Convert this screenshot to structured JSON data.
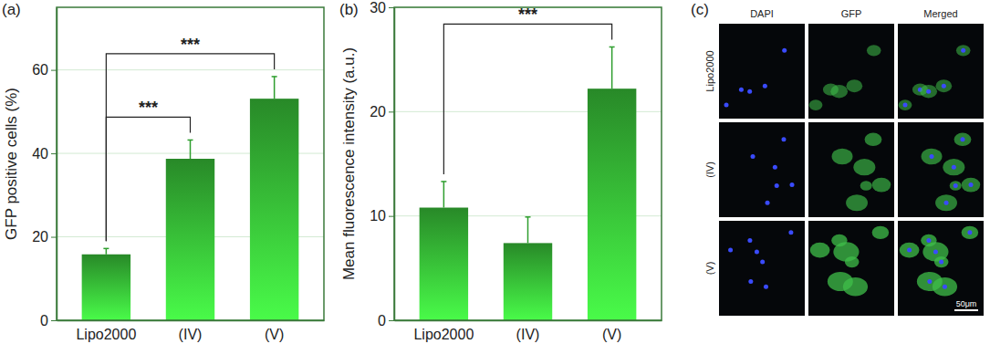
{
  "chart_data": [
    {
      "type": "bar",
      "title": "(a)",
      "y_label": "GFP positive cells (%)",
      "categories": [
        "Lipo2000",
        "(IV)",
        "(V)"
      ],
      "values": [
        15.8,
        38.7,
        53.1
      ],
      "errors": [
        1.4,
        4.5,
        5.3
      ],
      "color": "#2e9e2e",
      "ylim": [
        0,
        75
      ],
      "yticks": [
        0,
        20,
        40,
        60
      ],
      "grid": true,
      "annotations": [
        {
          "text": "***",
          "between": [
            "Lipo2000",
            "(IV)"
          ]
        },
        {
          "text": "***",
          "between": [
            "Lipo2000",
            "(V)"
          ]
        }
      ]
    },
    {
      "type": "bar",
      "title": "(b)",
      "y_label": "Mean fluorescence intensity (a.u.)",
      "categories": [
        "Lipo2000",
        "(IV)",
        "(V)"
      ],
      "values": [
        10.8,
        7.4,
        22.2
      ],
      "errors": [
        2.5,
        2.5,
        4.0
      ],
      "color": "#2e9e2e",
      "ylim": [
        0,
        30
      ],
      "yticks": [
        0,
        10,
        20,
        30
      ],
      "grid": true,
      "annotations": [
        {
          "text": "***",
          "between": [
            "Lipo2000",
            "(V)"
          ]
        }
      ]
    }
  ],
  "image_panel": {
    "title": "(c)",
    "columns": [
      "DAPI",
      "GFP",
      "Merged"
    ],
    "rows": [
      "Lipo2000",
      "(IV)",
      "(V)"
    ],
    "scale_bar": "50μm"
  }
}
